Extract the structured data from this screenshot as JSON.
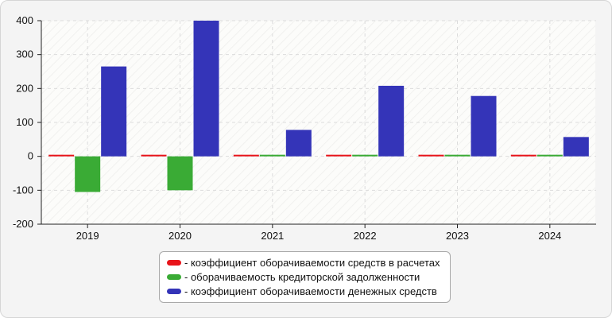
{
  "chart_data": {
    "type": "bar",
    "categories": [
      "2019",
      "2020",
      "2021",
      "2022",
      "2023",
      "2024"
    ],
    "series": [
      {
        "name": "- коэффициент оборачиваемости средств в расчетах",
        "color": "#e8141a",
        "values": [
          2,
          2,
          2,
          2,
          2,
          2
        ]
      },
      {
        "name": "- оборачиваемость кредиторской задолженности",
        "color": "#3aab35",
        "values": [
          -105,
          -100,
          2,
          2,
          2,
          2
        ]
      },
      {
        "name": "- коэффициент оборачиваемости денежных средств",
        "color": "#3434b8",
        "values": [
          265,
          400,
          78,
          208,
          178,
          57
        ]
      }
    ],
    "yticks": [
      400,
      300,
      200,
      100,
      0,
      -100,
      -200
    ],
    "ylim": [
      -200,
      400
    ],
    "title": "",
    "xlabel": "",
    "ylabel": "",
    "grid": true,
    "legend_position": "bottom-center"
  }
}
